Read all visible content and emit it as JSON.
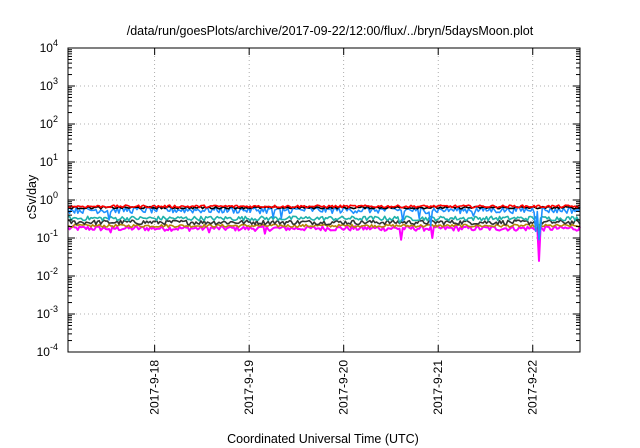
{
  "chart_data": {
    "type": "line",
    "title": "/data/run/goesPlots/archive/2017-09-22/12:00/flux/../bryn/5daysMoon.plot",
    "xlabel": "Coordinated Universal Time (UTC)",
    "ylabel": "cSv/day",
    "yscale": "log",
    "ylim": [
      0.0001,
      10000
    ],
    "y_ticks": [
      {
        "base": "10",
        "exp": "-4",
        "value": 0.0001
      },
      {
        "base": "10",
        "exp": "-3",
        "value": 0.001
      },
      {
        "base": "10",
        "exp": "-2",
        "value": 0.01
      },
      {
        "base": "10",
        "exp": "-1",
        "value": 0.1
      },
      {
        "base": "10",
        "exp": "0",
        "value": 1
      },
      {
        "base": "10",
        "exp": "1",
        "value": 10
      },
      {
        "base": "10",
        "exp": "2",
        "value": 100
      },
      {
        "base": "10",
        "exp": "3",
        "value": 1000
      },
      {
        "base": "10",
        "exp": "4",
        "value": 10000
      }
    ],
    "xlim": [
      "2017-09-17T02:00",
      "2017-09-22T12:00"
    ],
    "x_ticks": [
      {
        "label": "2017-9-18",
        "value": "2017-09-18T00:00"
      },
      {
        "label": "2017-9-19",
        "value": "2017-09-19T00:00"
      },
      {
        "label": "2017-9-20",
        "value": "2017-09-20T00:00"
      },
      {
        "label": "2017-9-21",
        "value": "2017-09-21T00:00"
      },
      {
        "label": "2017-9-22",
        "value": "2017-09-22T00:00"
      }
    ],
    "grid": "dotted",
    "legend": "none",
    "series": [
      {
        "color": "#ff0000",
        "base": 0.68,
        "jitter": 0.06,
        "dips": []
      },
      {
        "color": "#000000",
        "base": 0.63,
        "jitter": 0.05,
        "dips": []
      },
      {
        "color": "#1e90ff",
        "base": 0.55,
        "jitter": 0.12,
        "dips": [
          {
            "t": "2017-09-17T12:30",
            "value": 0.3
          },
          {
            "t": "2017-09-19T06:00",
            "value": 0.35
          },
          {
            "t": "2017-09-19T08:00",
            "value": 0.33
          },
          {
            "t": "2017-09-20T15:00",
            "value": 0.28
          },
          {
            "t": "2017-09-20T19:00",
            "value": 0.33
          },
          {
            "t": "2017-09-20T22:00",
            "value": 0.21
          },
          {
            "t": "2017-09-21T09:00",
            "value": 0.38
          },
          {
            "t": "2017-09-22T00:50",
            "value": 0.15
          },
          {
            "t": "2017-09-22T01:30",
            "value": 0.09
          },
          {
            "t": "2017-09-22T02:10",
            "value": 0.18
          }
        ]
      },
      {
        "color": "#20b2aa",
        "base": 0.33,
        "jitter": 0.05,
        "dips": [
          {
            "t": "2017-09-20T14:00",
            "value": 0.25
          },
          {
            "t": "2017-09-22T01:30",
            "value": 0.12
          }
        ]
      },
      {
        "color": "#333333",
        "base": 0.26,
        "jitter": 0.04,
        "dips": [
          {
            "t": "2017-09-22T01:30",
            "value": 0.1
          }
        ]
      },
      {
        "color": "#b8860b",
        "base": 0.21,
        "jitter": 0.02,
        "dips": []
      },
      {
        "color": "#ff00ff",
        "base": 0.18,
        "jitter": 0.03,
        "dips": [
          {
            "t": "2017-09-17T13:00",
            "value": 0.14
          },
          {
            "t": "2017-09-18T14:00",
            "value": 0.14
          },
          {
            "t": "2017-09-19T04:00",
            "value": 0.13
          },
          {
            "t": "2017-09-20T14:30",
            "value": 0.09
          },
          {
            "t": "2017-09-20T22:30",
            "value": 0.1
          },
          {
            "t": "2017-09-22T01:30",
            "value": 0.025
          }
        ]
      }
    ]
  }
}
